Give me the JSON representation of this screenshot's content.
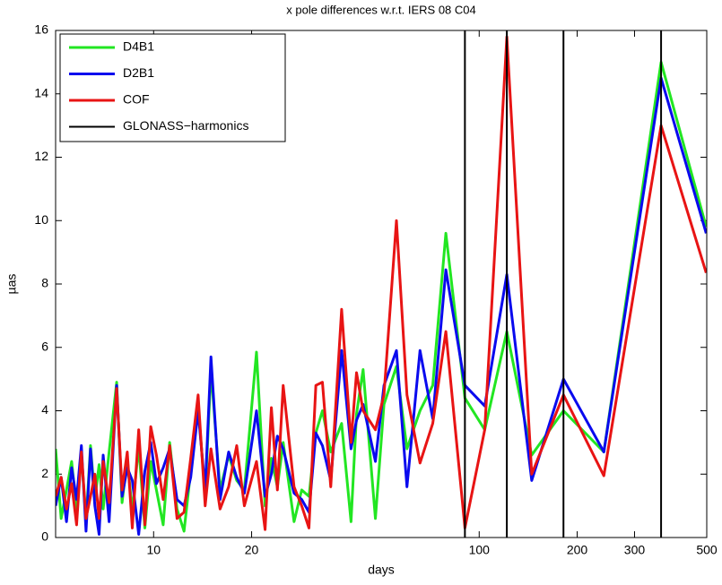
{
  "chart_data": {
    "type": "line",
    "title": "x pole differences w.r.t. IERS 08 C04",
    "xlabel": "days",
    "ylabel": "µas",
    "xscale": "log",
    "xlim": [
      5,
      500
    ],
    "xticks": [
      10,
      20,
      100,
      200,
      300,
      500
    ],
    "ylim": [
      0,
      16
    ],
    "yticks": [
      0,
      2,
      4,
      6,
      8,
      10,
      12,
      14,
      16
    ],
    "legend": "upper left",
    "x": [
      5,
      5.2,
      5.4,
      5.6,
      5.8,
      6,
      6.2,
      6.4,
      6.6,
      6.8,
      7,
      7.3,
      7.7,
      8,
      8.3,
      8.6,
      9,
      9.4,
      9.8,
      10.2,
      10.7,
      11.2,
      11.8,
      12.4,
      13,
      13.7,
      14.4,
      15,
      16,
      17,
      18,
      19,
      20.7,
      22,
      23,
      24,
      25,
      27,
      28.5,
      30,
      31.5,
      33,
      35,
      37.8,
      40.4,
      42,
      44,
      48,
      51,
      55.7,
      60,
      65.8,
      72,
      79,
      90.4,
      104,
      121.6,
      145,
      181.5,
      241.5,
      362,
      498
    ],
    "series": [
      {
        "name": "D4B1",
        "color": "#22e622",
        "values": [
          2.8,
          0.6,
          1.5,
          2.4,
          0.9,
          2.6,
          0.5,
          2.9,
          1.2,
          2.3,
          0.9,
          2.7,
          4.9,
          1.1,
          2.5,
          0.8,
          2.9,
          0.3,
          2.4,
          1.5,
          0.4,
          3.0,
          0.9,
          0.2,
          2.1,
          4.2,
          1.3,
          5.3,
          1.5,
          2.6,
          1.8,
          1.5,
          5.85,
          1.0,
          2.5,
          1.6,
          3.0,
          0.5,
          1.5,
          1.3,
          3.3,
          4.0,
          2.7,
          3.6,
          0.5,
          3.9,
          5.3,
          0.6,
          4.2,
          5.4,
          2.8,
          4.0,
          4.8,
          9.6,
          4.4,
          3.4,
          6.5,
          2.6,
          4.0,
          2.7,
          15.0,
          9.8
        ]
      },
      {
        "name": "D2B1",
        "color": "#0a0aee",
        "values": [
          1.0,
          1.9,
          0.5,
          2.2,
          1.2,
          2.9,
          0.2,
          2.8,
          1.0,
          0.1,
          2.6,
          0.5,
          4.8,
          1.3,
          2.2,
          1.8,
          0.1,
          2.1,
          3.0,
          1.7,
          2.2,
          2.8,
          1.2,
          1.0,
          1.9,
          4.0,
          1.5,
          5.7,
          1.2,
          2.7,
          1.9,
          1.4,
          4.0,
          1.3,
          2.0,
          3.2,
          2.8,
          1.4,
          1.2,
          0.8,
          3.3,
          2.9,
          1.8,
          5.9,
          2.8,
          3.7,
          4.2,
          2.4,
          4.8,
          5.9,
          1.6,
          5.9,
          3.75,
          8.45,
          4.8,
          4.15,
          8.3,
          1.8,
          5.0,
          2.7,
          14.5,
          9.6
        ]
      },
      {
        "name": "COF",
        "color": "#e81414",
        "values": [
          1.3,
          1.9,
          0.9,
          1.7,
          0.4,
          2.7,
          0.6,
          1.3,
          2.0,
          0.6,
          2.4,
          1.1,
          4.7,
          1.5,
          2.7,
          0.3,
          3.4,
          0.4,
          3.5,
          2.6,
          1.2,
          2.9,
          0.6,
          0.8,
          2.5,
          4.5,
          1.0,
          2.8,
          0.9,
          1.6,
          2.9,
          1.0,
          2.4,
          0.25,
          4.1,
          1.5,
          4.8,
          1.6,
          1.0,
          0.3,
          4.8,
          4.9,
          1.6,
          7.2,
          3.0,
          5.2,
          4.0,
          3.4,
          4.5,
          10.0,
          4.5,
          2.35,
          3.6,
          6.5,
          0.3,
          3.4,
          15.8,
          2.0,
          4.5,
          1.95,
          13.0,
          8.35
        ]
      }
    ],
    "vlines": {
      "name": "GLONASS−harmonics",
      "color": "#000000",
      "x": [
        90.4,
        121.6,
        181.5,
        362
      ]
    }
  }
}
